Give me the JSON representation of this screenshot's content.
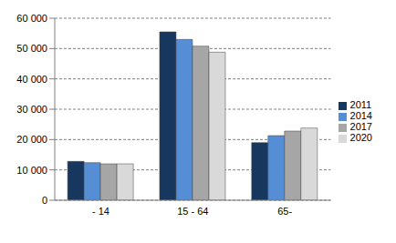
{
  "chart_data": {
    "type": "bar",
    "categories": [
      "- 14",
      "15 - 64",
      "65-"
    ],
    "series": [
      {
        "name": "2011",
        "color": "#17375e",
        "values": [
          12800,
          55500,
          19000
        ]
      },
      {
        "name": "2014",
        "color": "#558ed5",
        "values": [
          12400,
          53000,
          21300
        ]
      },
      {
        "name": "2017",
        "color": "#a6a6a6",
        "values": [
          12000,
          50800,
          22800
        ]
      },
      {
        "name": "2020",
        "color": "#d9d9d9",
        "values": [
          12000,
          48800,
          23800
        ]
      }
    ],
    "ylim": [
      0,
      60000
    ],
    "yticks": [
      0,
      {
        "value": 10000,
        "label": "10 000"
      },
      {
        "value": 20000,
        "label": "20 000"
      },
      {
        "value": 30000,
        "label": "30 000"
      },
      {
        "value": 40000,
        "label": "40 000"
      },
      {
        "value": 50000,
        "label": "50 000"
      },
      {
        "value": 60000,
        "label": "60 000"
      }
    ],
    "grid": true,
    "legend": "right"
  }
}
